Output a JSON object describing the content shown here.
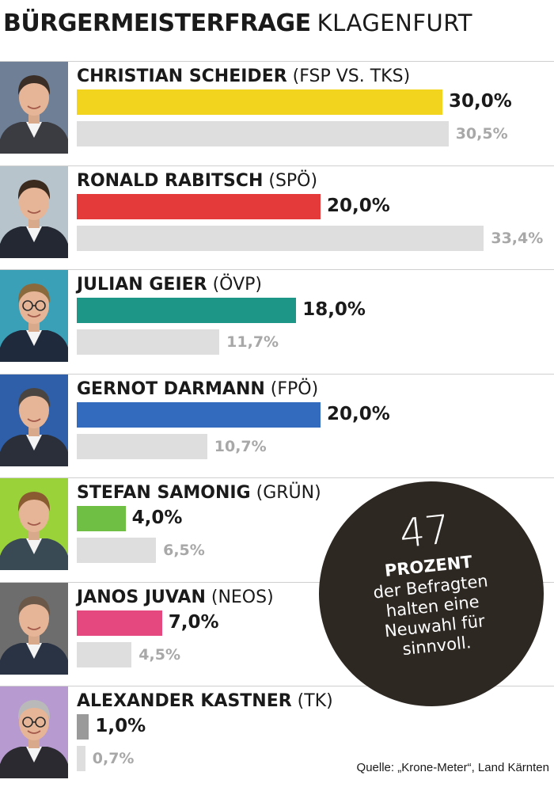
{
  "header": {
    "title_bold": "BÜRGERMEISTERFRAGE",
    "title_light": "KLAGENFURT"
  },
  "chart_data": {
    "type": "bar",
    "title": "BÜRGERMEISTERFRAGE KLAGENFURT",
    "xlim": [
      0,
      35
    ],
    "categories": [
      "CHRISTIAN SCHEIDER (FSP VS. TKS)",
      "RONALD RABITSCH (SPÖ)",
      "JULIAN GEIER (ÖVP)",
      "GERNOT DARMANN (FPÖ)",
      "STEFAN SAMONIG (GRÜN)",
      "JANOS JUVAN (NEOS)",
      "ALEXANDER KASTNER (TK)"
    ],
    "series": [
      {
        "values": [
          30.0,
          20.0,
          18.0,
          20.0,
          4.0,
          7.0,
          1.0
        ]
      },
      {
        "values": [
          30.5,
          33.4,
          11.7,
          10.7,
          6.5,
          4.5,
          0.7
        ],
        "color": "#dedede"
      }
    ],
    "candidates": [
      {
        "name": "CHRISTIAN SCHEIDER",
        "party": "(FSP VS. TKS)",
        "value": 30.0,
        "value_label": "30,0%",
        "prev": 30.5,
        "prev_label": "30,5%",
        "color": "#f2d41f",
        "suit": "#3b3b42",
        "hair": "#3a2e26",
        "bg": "#6e7f96",
        "glasses": false,
        "icon": "person-photo-icon"
      },
      {
        "name": "RONALD RABITSCH",
        "party": "(SPÖ)",
        "value": 20.0,
        "value_label": "20,0%",
        "prev": 33.4,
        "prev_label": "33,4%",
        "color": "#e53a3a",
        "suit": "#232833",
        "hair": "#3b2a1e",
        "bg": "#b8c4cc",
        "glasses": false,
        "icon": "person-photo-icon"
      },
      {
        "name": "JULIAN GEIER",
        "party": "(ÖVP)",
        "value": 18.0,
        "value_label": "18,0%",
        "prev": 11.7,
        "prev_label": "11,7%",
        "color": "#1d9688",
        "suit": "#1f2a3d",
        "hair": "#8a6a3c",
        "bg": "#3aa0b8",
        "glasses": true,
        "icon": "person-photo-icon"
      },
      {
        "name": "GERNOT DARMANN",
        "party": "(FPÖ)",
        "value": 20.0,
        "value_label": "20,0%",
        "prev": 10.7,
        "prev_label": "10,7%",
        "color": "#336bbf",
        "suit": "#2a2f3a",
        "hair": "#4a4540",
        "bg": "#2e5fa8",
        "glasses": false,
        "icon": "person-photo-icon"
      },
      {
        "name": "STEFAN SAMONIG",
        "party": "(GRÜN)",
        "value": 4.0,
        "value_label": "4,0%",
        "prev": 6.5,
        "prev_label": "6,5%",
        "color": "#6fbf45",
        "suit": "#3a4a55",
        "hair": "#8a5a30",
        "bg": "#9ad23a",
        "glasses": false,
        "icon": "person-photo-icon"
      },
      {
        "name": "JANOS JUVAN",
        "party": "(NEOS)",
        "value": 7.0,
        "value_label": "7,0%",
        "prev": 4.5,
        "prev_label": "4,5%",
        "color": "#e5487f",
        "suit": "#2a3344",
        "hair": "#6b5848",
        "bg": "#6d6d6d",
        "glasses": false,
        "icon": "person-photo-icon"
      },
      {
        "name": "ALEXANDER KASTNER",
        "party": "(TK)",
        "value": 1.0,
        "value_label": "1,0%",
        "prev": 0.7,
        "prev_label": "0,7%",
        "color": "#9a9a9a",
        "suit": "#2a2a30",
        "hair": "#b9b9b9",
        "bg": "#b79ad0",
        "glasses": true,
        "icon": "person-photo-icon"
      }
    ]
  },
  "badge": {
    "number": "47",
    "label": "PROZENT",
    "text_lines": [
      "der Befragten",
      "halten eine",
      "Neuwahl für",
      "sinnvoll."
    ],
    "color": "#2e2823"
  },
  "source": "Quelle: „Krone-Meter“, Land Kärnten"
}
